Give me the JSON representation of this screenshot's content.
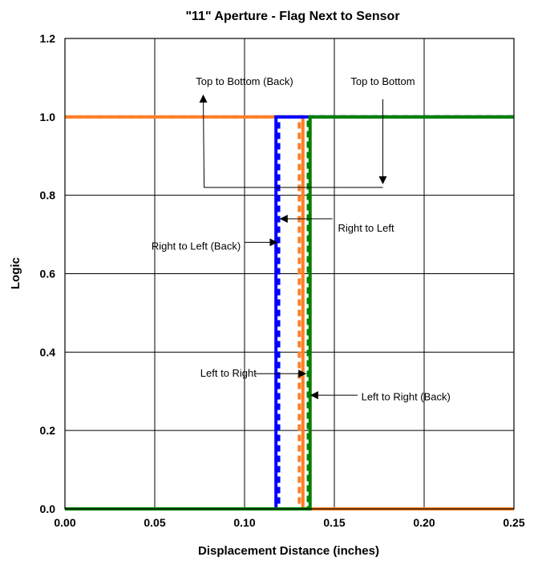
{
  "chart_data": {
    "type": "line",
    "title": "\"11\" Aperture - Flag Next to Sensor",
    "xlabel": "Displacement Distance (inches)",
    "ylabel": "Logic",
    "xlim": [
      0,
      0.25
    ],
    "ylim": [
      0,
      1.2
    ],
    "x_ticks": [
      "0.00",
      "0.05",
      "0.10",
      "0.15",
      "0.20",
      "0.25"
    ],
    "y_ticks": [
      "0.0",
      "0.2",
      "0.4",
      "0.6",
      "0.8",
      "1.0",
      "1.2"
    ],
    "grid": true,
    "legend": "none",
    "series": [
      {
        "color": "#ff7f27",
        "style": "solid",
        "points": [
          [
            0,
            1
          ],
          [
            0.1325,
            1
          ],
          [
            0.1325,
            0
          ],
          [
            0.25,
            0
          ]
        ]
      },
      {
        "color": "#ff7f27",
        "style": "dashed",
        "points": [
          [
            0,
            1
          ],
          [
            0.1305,
            1
          ],
          [
            0.1305,
            0
          ],
          [
            0.25,
            0
          ]
        ]
      },
      {
        "color": "#0000ff",
        "style": "solid",
        "points": [
          [
            0,
            0
          ],
          [
            0.1175,
            0
          ],
          [
            0.1175,
            1
          ],
          [
            0.25,
            1
          ]
        ]
      },
      {
        "color": "#0000ff",
        "style": "dashed",
        "points": [
          [
            0,
            0
          ],
          [
            0.119,
            0
          ],
          [
            0.119,
            1
          ],
          [
            0.25,
            1
          ]
        ]
      },
      {
        "color": "#008000",
        "style": "solid",
        "points": [
          [
            0,
            0
          ],
          [
            0.1365,
            0
          ],
          [
            0.1365,
            1
          ],
          [
            0.25,
            1
          ]
        ]
      },
      {
        "color": "#008000",
        "style": "dashed",
        "points": [
          [
            0,
            0
          ],
          [
            0.1355,
            0
          ],
          [
            0.1355,
            1
          ],
          [
            0.25,
            1
          ]
        ]
      }
    ],
    "annotations": [
      {
        "text": "Top to Bottom (Back)",
        "label_at": [
          0.1,
          1.09
        ],
        "anchor": "middle",
        "path": [
          [
            0.0,
            1.09
          ],
          [
            0.0,
            1.09
          ]
        ],
        "leader": [
          [
            0.077,
            1.055
          ],
          [
            0.0775,
            0.82
          ],
          [
            0.177,
            0.82
          ]
        ],
        "arrow_to": [
          0.077,
          1.055
        ]
      },
      {
        "text": "Top to Bottom",
        "label_at": [
          0.177,
          1.09
        ],
        "anchor": "middle",
        "leader": [
          [
            0.177,
            1.045
          ],
          [
            0.177,
            0.83
          ]
        ],
        "arrow_to": [
          0.177,
          0.83
        ]
      },
      {
        "text": "Right to Left",
        "label_at": [
          0.152,
          0.715
        ],
        "anchor": "start",
        "leader": [
          [
            0.149,
            0.74
          ],
          [
            0.12,
            0.74
          ]
        ],
        "arrow_to": [
          0.12,
          0.74
        ]
      },
      {
        "text": "Right to Left  (Back)",
        "label_at": [
          0.073,
          0.67
        ],
        "anchor": "middle",
        "leader": [
          [
            0.1,
            0.68
          ],
          [
            0.118,
            0.68
          ]
        ],
        "arrow_to": [
          0.118,
          0.68
        ]
      },
      {
        "text": "Left to Right",
        "label_at": [
          0.091,
          0.345
        ],
        "anchor": "middle",
        "leader": [
          [
            0.106,
            0.345
          ],
          [
            0.134,
            0.345
          ]
        ],
        "arrow_to": [
          0.134,
          0.345
        ]
      },
      {
        "text": "Left to Right (Back)",
        "label_at": [
          0.165,
          0.285
        ],
        "anchor": "start",
        "leader": [
          [
            0.163,
            0.29
          ],
          [
            0.137,
            0.29
          ]
        ],
        "arrow_to": [
          0.137,
          0.29
        ]
      }
    ]
  }
}
